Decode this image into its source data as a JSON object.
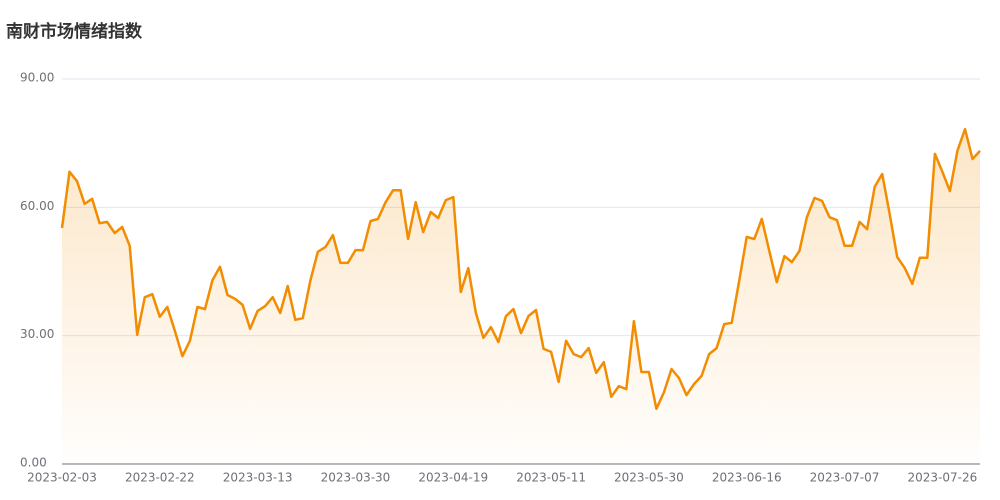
{
  "chart_data": {
    "type": "line",
    "title": "南财市场情绪指数",
    "categories": [
      "2023-02-03",
      null,
      null,
      null,
      null,
      null,
      null,
      null,
      null,
      null,
      null,
      null,
      null,
      "2023-02-22",
      null,
      null,
      null,
      null,
      null,
      null,
      null,
      null,
      null,
      null,
      null,
      null,
      "2023-03-13",
      null,
      null,
      null,
      null,
      null,
      null,
      null,
      null,
      null,
      null,
      null,
      null,
      "2023-03-30",
      null,
      null,
      null,
      null,
      null,
      null,
      null,
      null,
      null,
      null,
      null,
      null,
      "2023-04-19",
      null,
      null,
      null,
      null,
      null,
      null,
      null,
      null,
      null,
      null,
      null,
      null,
      "2023-05-11",
      null,
      null,
      null,
      null,
      null,
      null,
      null,
      null,
      null,
      null,
      null,
      null,
      "2023-05-30",
      null,
      null,
      null,
      null,
      null,
      null,
      null,
      null,
      null,
      null,
      null,
      null,
      "2023-06-16",
      null,
      null,
      null,
      null,
      null,
      null,
      null,
      null,
      null,
      null,
      null,
      null,
      "2023-07-07",
      null,
      null,
      null,
      null,
      null,
      null,
      null,
      null,
      null,
      null,
      null,
      null,
      "2023-07-26",
      null,
      null,
      null,
      null,
      null
    ],
    "series": [
      {
        "color": "#f28c00",
        "values": [
          55.2,
          68.3,
          66.1,
          60.8,
          62,
          56.3,
          56.6,
          54,
          55.4,
          51,
          30.2,
          39,
          39.7,
          34.4,
          36.7,
          31.1,
          25.2,
          28.8,
          36.7,
          36.2,
          43,
          46.1,
          39.5,
          38.6,
          37.2,
          31.6,
          35.8,
          36.9,
          39,
          35.3,
          41.6,
          33.7,
          34.1,
          42.8,
          49.6,
          50.7,
          53.5,
          47,
          47,
          50,
          50,
          56.8,
          57.3,
          61.2,
          64,
          64,
          52.6,
          61.2,
          54.2,
          58.9,
          57.5,
          61.7,
          62.4,
          40.2,
          45.8,
          35.3,
          29.5,
          32,
          28.5,
          34.6,
          36.2,
          30.6,
          34.6,
          36,
          26.9,
          26.2,
          19.2,
          28.8,
          25.7,
          25,
          27.1,
          21.3,
          23.8,
          15.7,
          18.2,
          17.5,
          33.4,
          21.5,
          21.5,
          12.9,
          16.8,
          22.2,
          20.1,
          16.1,
          18.7,
          20.6,
          25.7,
          27.1,
          32.7,
          33,
          42.8,
          53.1,
          52.6,
          57.3,
          49.8,
          42.5,
          48.6,
          47.2,
          49.8,
          57.7,
          62.2,
          61.5,
          57.7,
          57,
          51,
          51,
          56.6,
          54.9,
          64.8,
          67.8,
          58.4,
          48.4,
          45.8,
          42.1,
          48.2,
          48.2,
          72.5,
          68.3,
          63.8,
          73.2,
          78.3,
          71.3,
          73.2
        ]
      }
    ],
    "ylim": [
      0,
      90
    ],
    "yticks": [
      {
        "value": 0,
        "label": "0.00"
      },
      {
        "value": 30,
        "label": "30.00"
      },
      {
        "value": 60,
        "label": "60.00"
      },
      {
        "value": 90,
        "label": "90.00"
      }
    ],
    "grid": true
  }
}
